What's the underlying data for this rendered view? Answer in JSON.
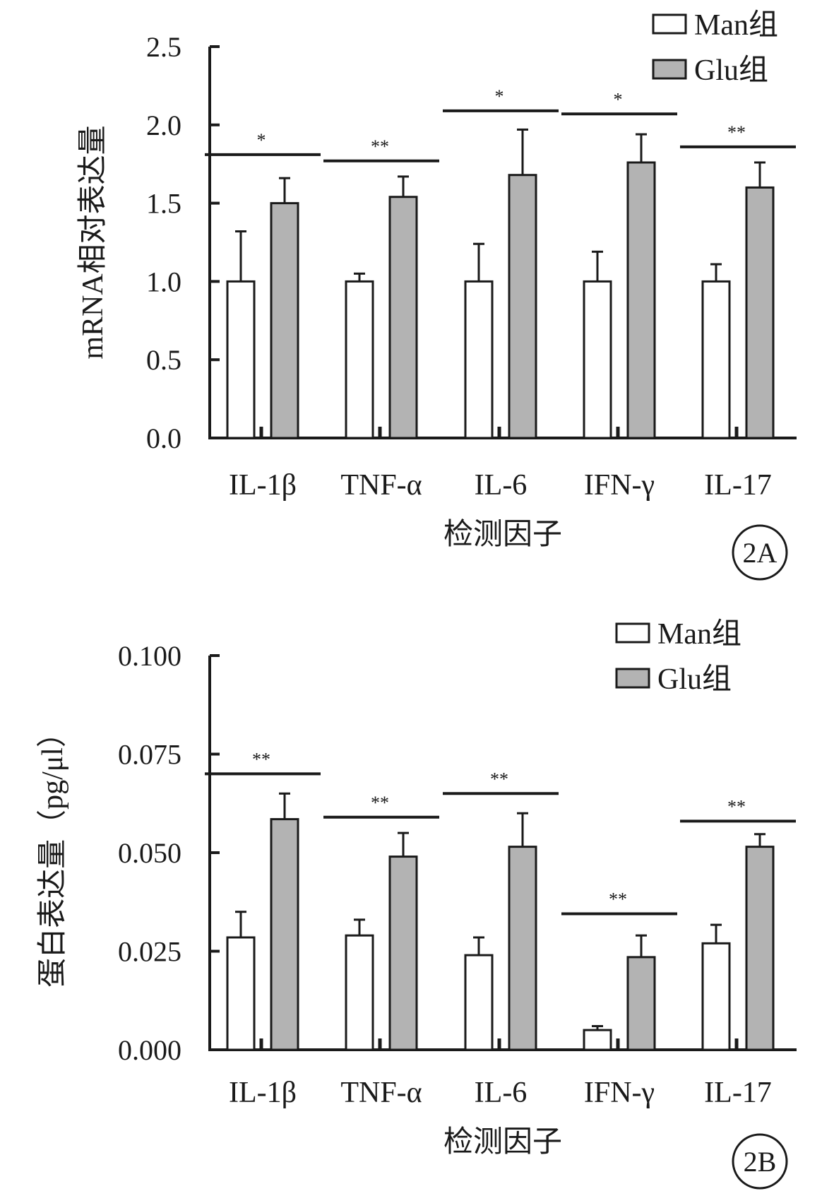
{
  "figure": {
    "panels": [
      {
        "id": "2A",
        "panel_label": "2A"
      },
      {
        "id": "2B",
        "panel_label": "2B"
      }
    ]
  },
  "colors": {
    "man_fill": "#ffffff",
    "glu_fill": "#b3b3b3",
    "stroke": "#1a1a1a"
  },
  "chart_data": [
    {
      "type": "bar",
      "panel": "2A",
      "categories": [
        "IL-1β",
        "TNF-α",
        "IL-6",
        "IFN-γ",
        "IL-17"
      ],
      "series": [
        {
          "name": "Man组",
          "values": [
            1.0,
            1.0,
            1.0,
            1.0,
            1.0
          ],
          "error": [
            0.32,
            0.05,
            0.24,
            0.19,
            0.11
          ]
        },
        {
          "name": "Glu组",
          "values": [
            1.5,
            1.54,
            1.68,
            1.76,
            1.6
          ],
          "error": [
            0.16,
            0.13,
            0.29,
            0.18,
            0.16
          ]
        }
      ],
      "significance": [
        "*",
        "**",
        "*",
        "*",
        "**"
      ],
      "significance_line": [
        1.81,
        1.77,
        2.09,
        2.07,
        1.86
      ],
      "xlabel": "检测因子",
      "ylabel": "mRNA相对表达量",
      "ylim": [
        0,
        2.5
      ],
      "yticks": [
        "0.0",
        "0.5",
        "1.0",
        "1.5",
        "2.0",
        "2.5"
      ],
      "legend": [
        "Man组",
        "Glu组"
      ],
      "legend_position": "top-right",
      "grid": false
    },
    {
      "type": "bar",
      "panel": "2B",
      "categories": [
        "IL-1β",
        "TNF-α",
        "IL-6",
        "IFN-γ",
        "IL-17"
      ],
      "series": [
        {
          "name": "Man组",
          "values": [
            0.0285,
            0.029,
            0.024,
            0.005,
            0.027
          ],
          "error": [
            0.0065,
            0.004,
            0.0045,
            0.001,
            0.0047
          ]
        },
        {
          "name": "Glu组",
          "values": [
            0.0585,
            0.049,
            0.0515,
            0.0235,
            0.0515
          ],
          "error": [
            0.0065,
            0.006,
            0.0085,
            0.0055,
            0.0032
          ]
        }
      ],
      "significance": [
        "**",
        "**",
        "**",
        "**",
        "**"
      ],
      "significance_line": [
        0.07,
        0.059,
        0.065,
        0.0345,
        0.058
      ],
      "xlabel": "检测因子",
      "ylabel": "蛋白表达量（pg/μl）",
      "ylim": [
        0,
        0.1
      ],
      "yticks": [
        "0.000",
        "0.025",
        "0.050",
        "0.075",
        "0.100"
      ],
      "legend": [
        "Man组",
        "Glu组"
      ],
      "legend_position": "top-right",
      "grid": false
    }
  ]
}
